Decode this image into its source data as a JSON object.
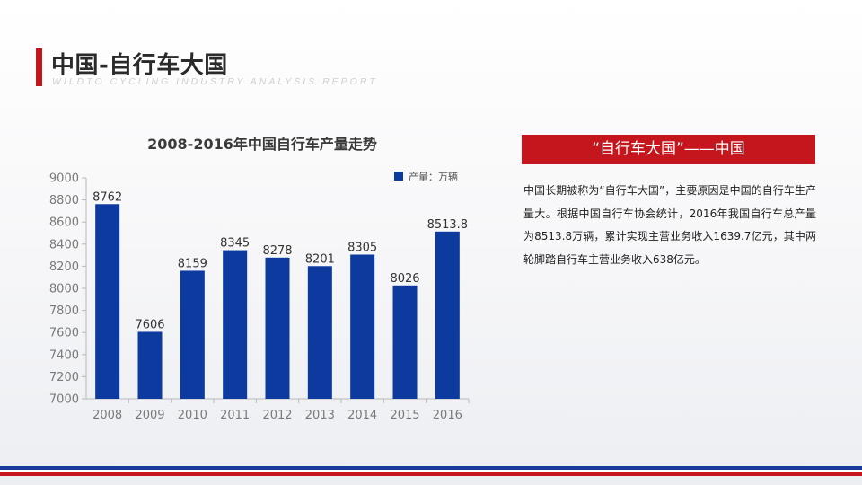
{
  "header": {
    "title": "中国-自行车大国",
    "subtitle": "WILDTO CYCLING INDUSTRY ANALYSIS REPORT"
  },
  "info": {
    "heading": "“自行车大国”——中国",
    "body": "中国长期被称为“自行车大国”，主要原因是中国的自行车生产量大。根据中国自行车协会统计，2016年我国自行车总产量为8513.8万辆，累计实现主营业务收入1639.7亿元，其中两轮脚踏自行车主营业务收入638亿元。"
  },
  "colors": {
    "accent_red": "#c4161c",
    "bar_blue": "#0d3a9e",
    "stripe_blue": "#1a3a9a"
  },
  "chart_data": {
    "type": "bar",
    "title": "2008-2016年中国自行车产量走势",
    "categories": [
      "2008",
      "2009",
      "2010",
      "2011",
      "2012",
      "2013",
      "2014",
      "2015",
      "2016"
    ],
    "series": [
      {
        "name": "产量：万辆",
        "values": [
          8762,
          7606,
          8159,
          8345,
          8278,
          8201,
          8305,
          8026,
          8513.8
        ],
        "labels": [
          "8762",
          "7606",
          "8159",
          "8345",
          "8278",
          "8201",
          "8305",
          "8026",
          "8513.8"
        ]
      }
    ],
    "ylim": [
      7000,
      9000
    ],
    "yticks": [
      7000,
      7200,
      7400,
      7600,
      7800,
      8000,
      8200,
      8400,
      8600,
      8800,
      9000
    ],
    "grid": false,
    "legend": "top-right",
    "xlabel": "",
    "ylabel": ""
  }
}
